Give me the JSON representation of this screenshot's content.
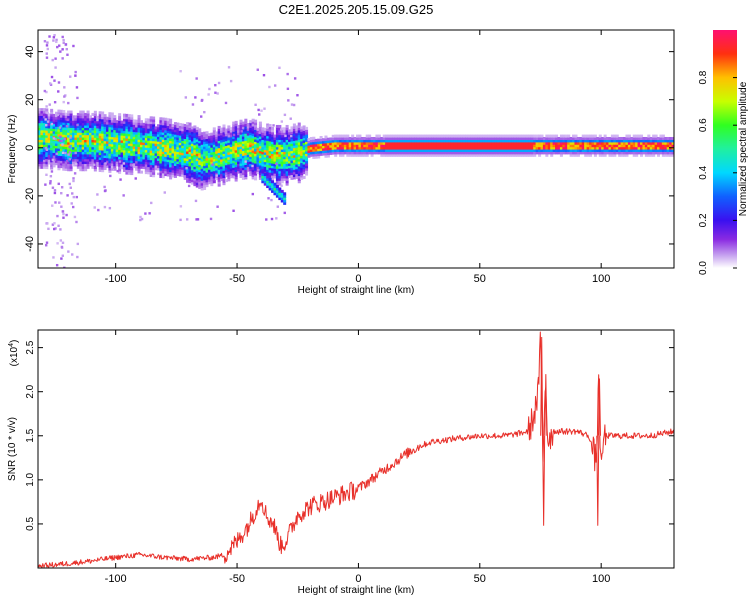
{
  "title": "C2E1.2025.205.15.09.G25",
  "chart_data": [
    {
      "type": "heatmap",
      "xlabel": "Height of straight line (km)",
      "ylabel": "Frequency (Hz)",
      "xlim": [
        -132,
        130
      ],
      "ylim": [
        -50,
        49
      ],
      "xticks": [
        -100,
        -50,
        0,
        50,
        100
      ],
      "yticks": [
        -40,
        -20,
        0,
        20,
        40
      ],
      "colorbar": {
        "label": "Normalized spectral amplitude",
        "range": [
          0,
          1
        ],
        "ticks": [
          "0.0",
          "0.2",
          "0.4",
          "0.6",
          "0.8"
        ]
      },
      "ridge": {
        "x": [
          -130,
          -120,
          -110,
          -100,
          -90,
          -80,
          -70,
          -65,
          -60,
          -50,
          -45,
          -40,
          -35,
          -30,
          -25,
          -20,
          -10,
          0,
          10,
          20,
          30,
          40,
          50,
          60,
          70,
          80,
          90,
          100,
          110,
          120,
          130
        ],
        "y": [
          4,
          3,
          3,
          2,
          1,
          0,
          -2,
          -5,
          -4,
          -1,
          0,
          -2,
          -3,
          -3,
          -2,
          0,
          1,
          1,
          1,
          1,
          1,
          1,
          1,
          1,
          1,
          1,
          1,
          1,
          1,
          1,
          1
        ]
      }
    },
    {
      "type": "line",
      "xlabel": "Height of straight line (km)",
      "ylabel": "SNR (10 * v/v)",
      "y_multiplier": "(x10",
      "y_multiplier_exp": "4",
      "xlim": [
        -132,
        130
      ],
      "ylim": [
        0,
        2.7
      ],
      "xticks": [
        -100,
        -50,
        0,
        50,
        100
      ],
      "yticks": [
        "0.5",
        "1.0",
        "1.5",
        "2.0",
        "2.5"
      ],
      "series": [
        {
          "color": "#e8302a",
          "x": [
            -132,
            -120,
            -110,
            -100,
            -90,
            -80,
            -70,
            -60,
            -55,
            -50,
            -45,
            -40,
            -38,
            -35,
            -32,
            -30,
            -25,
            -20,
            -15,
            -10,
            -5,
            0,
            5,
            10,
            15,
            20,
            25,
            30,
            40,
            50,
            60,
            65,
            70,
            72,
            74,
            75,
            76,
            77,
            78,
            80,
            85,
            90,
            95,
            98,
            99,
            100,
            101,
            105,
            110,
            120,
            130
          ],
          "y": [
            0.02,
            0.05,
            0.08,
            0.12,
            0.15,
            0.12,
            0.1,
            0.12,
            0.15,
            0.3,
            0.5,
            0.8,
            0.6,
            0.5,
            0.25,
            0.3,
            0.6,
            0.7,
            0.75,
            0.8,
            0.85,
            0.9,
            1.0,
            1.1,
            1.2,
            1.3,
            1.38,
            1.43,
            1.47,
            1.5,
            1.5,
            1.52,
            1.55,
            1.7,
            1.95,
            2.6,
            1.2,
            2.2,
            1.45,
            1.55,
            1.55,
            1.55,
            1.5,
            1.2,
            2.15,
            1.0,
            1.5,
            1.5,
            1.5,
            1.5,
            1.55
          ]
        }
      ]
    }
  ]
}
